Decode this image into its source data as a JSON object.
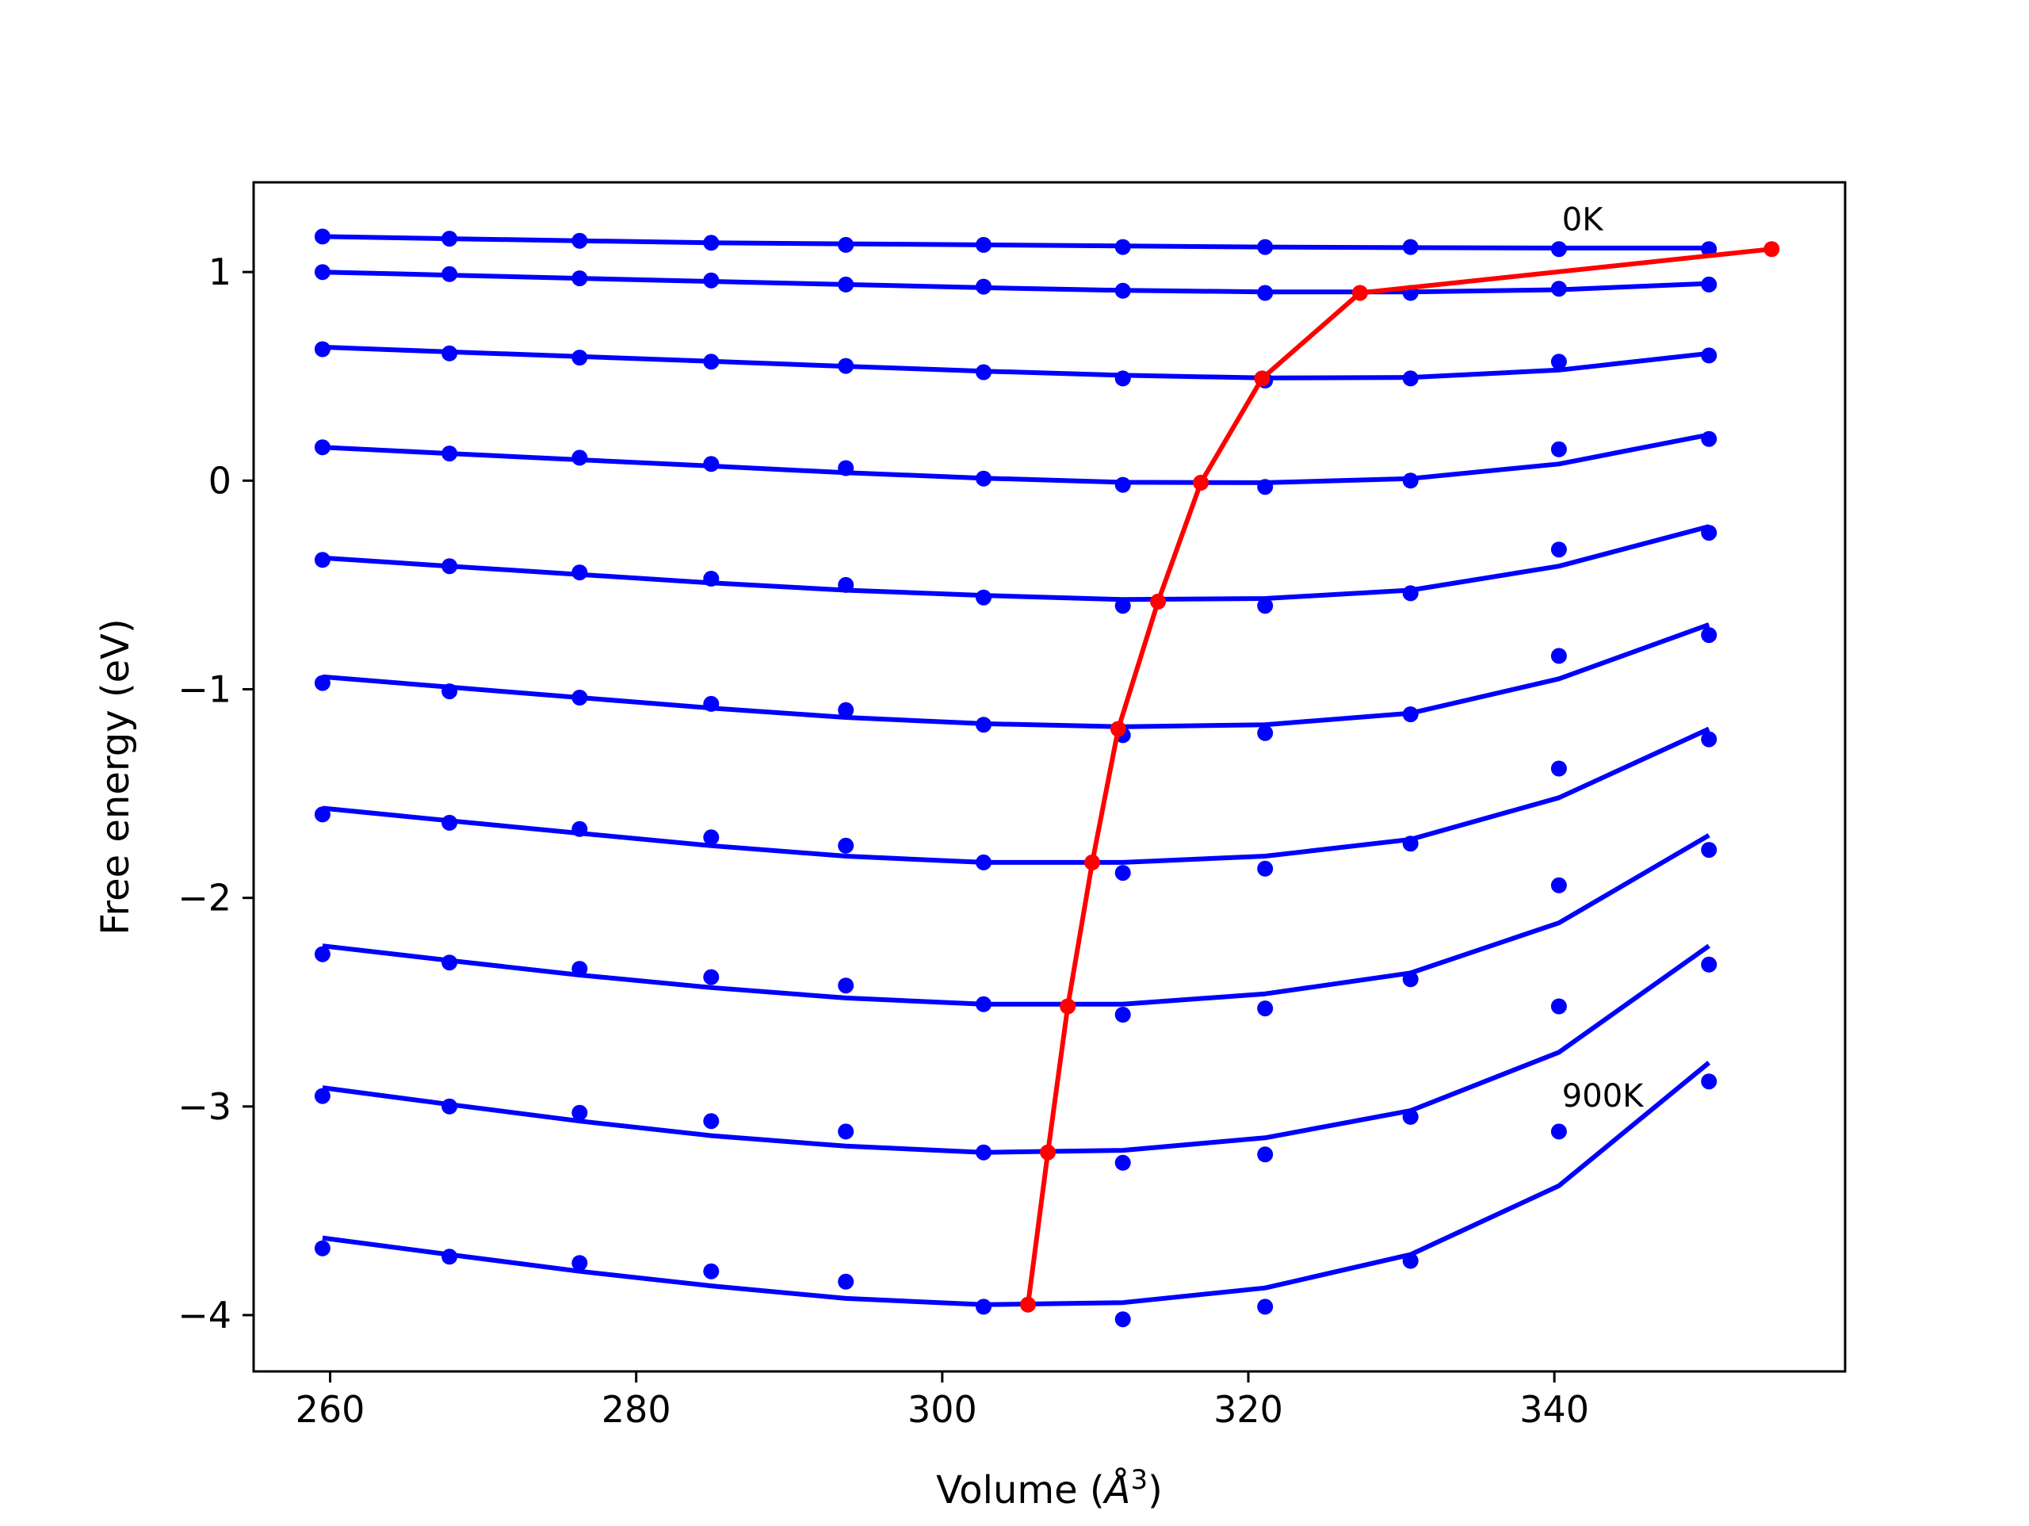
{
  "chart_data": {
    "type": "scatter",
    "title": "",
    "xlabel": "Volume (",
    "xlabel_unit_symbol": "Å",
    "xlabel_unit_power": "3",
    "xlabel_close": ")",
    "ylabel": "Free energy (eV)",
    "xlim": [
      255,
      359
    ],
    "ylim": [
      -4.27,
      1.43
    ],
    "xticks": [
      260,
      280,
      300,
      320,
      340
    ],
    "yticks": [
      -4,
      -3,
      -2,
      -1,
      0,
      1
    ],
    "xtick_labels": [
      "260",
      "280",
      "300",
      "320",
      "340"
    ],
    "ytick_labels": [
      "−4",
      "−3",
      "−2",
      "−1",
      "0",
      "1"
    ],
    "grid": false,
    "colors": {
      "data": "#0000ff",
      "equilibrium": "#ff0000"
    },
    "annotations": [
      {
        "text": "0K",
        "x": 340.5,
        "y": 1.2
      },
      {
        "text": "900K",
        "x": 340.5,
        "y": -3.0
      }
    ],
    "volumes": [
      259.5,
      267.8,
      276.3,
      284.9,
      293.7,
      302.7,
      311.8,
      321.1,
      330.6,
      340.3,
      350.1
    ],
    "series": [
      {
        "points": [
          1.17,
          1.16,
          1.15,
          1.14,
          1.13,
          1.13,
          1.12,
          1.12,
          1.12,
          1.11,
          1.11
        ],
        "fit": [
          1.17,
          1.16,
          1.15,
          1.14,
          1.135,
          1.13,
          1.125,
          1.12,
          1.117,
          1.115,
          1.115
        ]
      },
      {
        "points": [
          1.0,
          0.99,
          0.97,
          0.96,
          0.94,
          0.93,
          0.91,
          0.9,
          0.9,
          0.92,
          0.94
        ],
        "fit": [
          1.0,
          0.985,
          0.97,
          0.955,
          0.94,
          0.925,
          0.912,
          0.905,
          0.905,
          0.915,
          0.945
        ]
      },
      {
        "points": [
          0.63,
          0.61,
          0.59,
          0.57,
          0.55,
          0.52,
          0.49,
          0.48,
          0.49,
          0.57,
          0.6
        ],
        "fit": [
          0.64,
          0.617,
          0.595,
          0.572,
          0.548,
          0.525,
          0.505,
          0.492,
          0.495,
          0.53,
          0.61
        ]
      },
      {
        "points": [
          0.16,
          0.13,
          0.11,
          0.08,
          0.06,
          0.01,
          -0.02,
          -0.03,
          0.0,
          0.15,
          0.2
        ],
        "fit": [
          0.16,
          0.13,
          0.1,
          0.07,
          0.038,
          0.012,
          -0.008,
          -0.01,
          0.01,
          0.08,
          0.22
        ]
      },
      {
        "points": [
          -0.38,
          -0.41,
          -0.44,
          -0.47,
          -0.5,
          -0.56,
          -0.6,
          -0.6,
          -0.54,
          -0.33,
          -0.25
        ],
        "fit": [
          -0.37,
          -0.41,
          -0.45,
          -0.49,
          -0.525,
          -0.55,
          -0.57,
          -0.565,
          -0.525,
          -0.41,
          -0.22
        ]
      },
      {
        "points": [
          -0.97,
          -1.01,
          -1.04,
          -1.07,
          -1.1,
          -1.17,
          -1.22,
          -1.21,
          -1.12,
          -0.84,
          -0.74
        ],
        "fit": [
          -0.94,
          -0.99,
          -1.04,
          -1.09,
          -1.135,
          -1.165,
          -1.18,
          -1.17,
          -1.115,
          -0.95,
          -0.69
        ]
      },
      {
        "points": [
          -1.6,
          -1.64,
          -1.67,
          -1.71,
          -1.75,
          -1.83,
          -1.88,
          -1.86,
          -1.74,
          -1.38,
          -1.24
        ],
        "fit": [
          -1.57,
          -1.63,
          -1.69,
          -1.75,
          -1.8,
          -1.83,
          -1.83,
          -1.8,
          -1.72,
          -1.52,
          -1.19
        ]
      },
      {
        "points": [
          -2.27,
          -2.31,
          -2.34,
          -2.38,
          -2.42,
          -2.51,
          -2.56,
          -2.53,
          -2.39,
          -1.94,
          -1.77
        ],
        "fit": [
          -2.23,
          -2.3,
          -2.37,
          -2.43,
          -2.48,
          -2.51,
          -2.51,
          -2.46,
          -2.36,
          -2.12,
          -1.7
        ]
      },
      {
        "points": [
          -2.95,
          -3.0,
          -3.03,
          -3.07,
          -3.12,
          -3.22,
          -3.27,
          -3.23,
          -3.05,
          -2.52,
          -2.32
        ],
        "fit": [
          -2.91,
          -2.99,
          -3.07,
          -3.14,
          -3.19,
          -3.22,
          -3.21,
          -3.15,
          -3.02,
          -2.74,
          -2.23
        ]
      },
      {
        "points": [
          -3.68,
          -3.72,
          -3.75,
          -3.79,
          -3.84,
          -3.96,
          -4.02,
          -3.96,
          -3.74,
          -3.12,
          -2.88
        ],
        "fit": [
          -3.63,
          -3.71,
          -3.79,
          -3.86,
          -3.92,
          -3.95,
          -3.94,
          -3.87,
          -3.71,
          -3.38,
          -2.79
        ]
      }
    ],
    "equilibrium": {
      "x": [
        354.2,
        327.3,
        320.9,
        316.9,
        314.1,
        311.5,
        309.8,
        308.2,
        306.9,
        305.6
      ],
      "y": [
        1.11,
        0.9,
        0.49,
        -0.01,
        -0.58,
        -1.19,
        -1.83,
        -2.52,
        -3.22,
        -3.95
      ]
    }
  }
}
